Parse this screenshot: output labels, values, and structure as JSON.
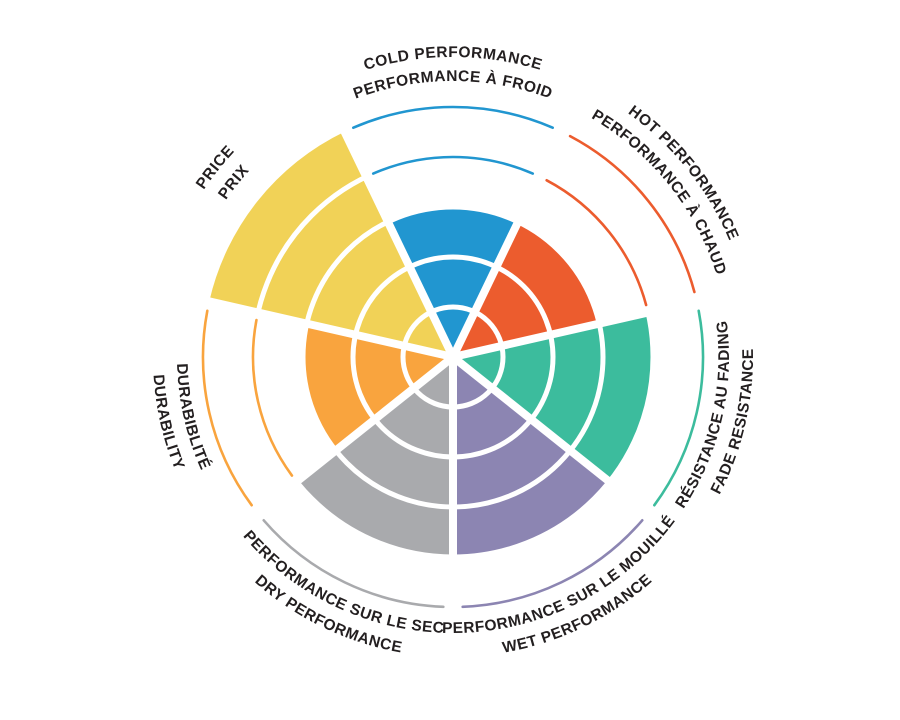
{
  "chart_data": {
    "type": "polar-sector",
    "description": "Circular sector (coxcomb) rating chart with 7 bilingual categories, rated 1-5",
    "max_value": 5,
    "levels": 5,
    "background": "#ffffff",
    "text_color": "#231f20",
    "grid_color": "#ffffff",
    "legend": "none",
    "categories": [
      {
        "id": "cold-performance",
        "label_en": "COLD PERFORMANCE",
        "label_fr": "PERFORMANCE À FROID",
        "value": 3,
        "color": "#2196d0"
      },
      {
        "id": "hot-performance",
        "label_en": "HOT PERFORMANCE",
        "label_fr": "PERFORMANCE À CHAUD",
        "value": 3,
        "color": "#ec5c2e"
      },
      {
        "id": "fade-resistance",
        "label_en": "FADE RESISTANCE",
        "label_fr": "RÉSISTANCE AU FADING",
        "value": 4,
        "color": "#3cbc9d"
      },
      {
        "id": "wet-performance",
        "label_en": "WET PERFORMANCE",
        "label_fr": "PERFORMANCE SUR LE MOUILLÉ",
        "value": 4,
        "color": "#8c85b2"
      },
      {
        "id": "dry-performance",
        "label_en": "DRY PERFORMANCE",
        "label_fr": "PERFORMANCE SUR LE SEC",
        "value": 4,
        "color": "#a9aaad"
      },
      {
        "id": "durability",
        "label_en": "DURABILITY",
        "label_fr": "DURABIBLITÉ",
        "value": 3,
        "color": "#f9a43e"
      },
      {
        "id": "price",
        "label_en": "PRICE",
        "label_fr": "PRIX",
        "value": 5,
        "color": "#f1d257"
      }
    ]
  }
}
